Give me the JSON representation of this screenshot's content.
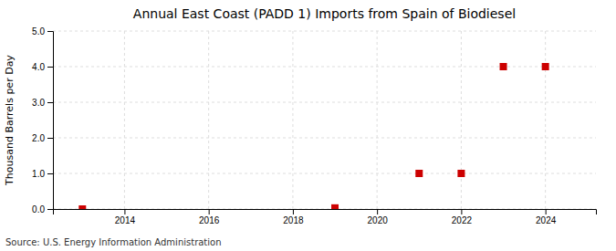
{
  "chart_data": {
    "type": "scatter",
    "title": "Annual East Coast (PADD 1) Imports from Spain of Biodiesel",
    "ylabel": "Thousand Barrels per Day",
    "annotations": [
      "Source: U.S. Energy Information Administration"
    ],
    "x": [
      2013,
      2019,
      2021,
      2022,
      2023,
      2024
    ],
    "values": [
      0.0,
      0.03,
      1.0,
      1.0,
      4.0,
      4.0
    ],
    "color": "#cc0000",
    "marker": "square",
    "xlim": [
      2012.3,
      2025.2
    ],
    "ylim": [
      0.0,
      5.0
    ],
    "xticks": [
      2014,
      2016,
      2018,
      2020,
      2022,
      2024
    ],
    "yticks": [
      {
        "value": 0.0,
        "label": "0.0"
      },
      {
        "value": 1.0,
        "label": "1.0"
      },
      {
        "value": 2.0,
        "label": "2.0"
      },
      {
        "value": 3.0,
        "label": "3.0"
      },
      {
        "value": 4.0,
        "label": "4.0"
      },
      {
        "value": 5.0,
        "label": "5.0"
      }
    ],
    "grid": true
  }
}
